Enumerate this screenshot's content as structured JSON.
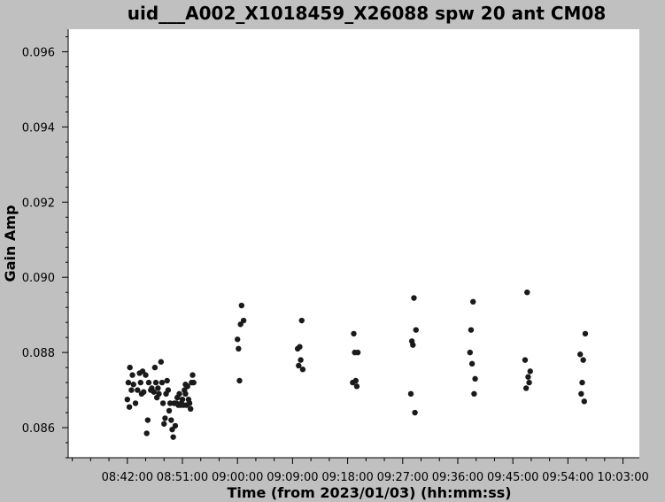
{
  "chart_data": {
    "type": "scatter",
    "title": "uid___A002_X1018459_X26088 spw 20 ant CM08",
    "xlabel": "Time (from 2023/01/03) (hh:mm:ss)",
    "ylabel": "Gain Amp",
    "x_tick_labels": [
      "08:42:00",
      "08:51:00",
      "09:00:00",
      "09:09:00",
      "09:18:00",
      "09:27:00",
      "09:36:00",
      "09:45:00",
      "09:54:00",
      "10:03:00"
    ],
    "y_tick_labels": [
      "0.086",
      "0.088",
      "0.090",
      "0.092",
      "0.094",
      "0.096"
    ],
    "y_ticks": [
      0.086,
      0.088,
      0.09,
      0.092,
      0.094,
      0.096
    ],
    "xlim": [
      "08:32:20",
      "10:05:40"
    ],
    "ylim": [
      0.0852,
      0.0966
    ],
    "grid": false,
    "point_color": "#1a1a1a",
    "series": [
      {
        "points": [
          [
            "08:42:00",
            0.08675
          ],
          [
            "08:42:10",
            0.0872
          ],
          [
            "08:42:20",
            0.08655
          ],
          [
            "08:42:25",
            0.0876
          ],
          [
            "08:42:40",
            0.087
          ],
          [
            "08:42:50",
            0.0874
          ],
          [
            "08:43:00",
            0.08715
          ],
          [
            "08:43:20",
            0.08665
          ],
          [
            "08:43:40",
            0.087
          ],
          [
            "08:44:00",
            0.08745
          ],
          [
            "08:44:10",
            0.0872
          ],
          [
            "08:44:20",
            0.0869
          ],
          [
            "08:44:30",
            0.0875
          ],
          [
            "08:44:40",
            0.08695
          ],
          [
            "08:45:00",
            0.0874
          ],
          [
            "08:45:10",
            0.08585
          ],
          [
            "08:45:20",
            0.0862
          ],
          [
            "08:45:30",
            0.0872
          ],
          [
            "08:45:50",
            0.087
          ],
          [
            "08:46:00",
            0.08705
          ],
          [
            "08:46:20",
            0.08695
          ],
          [
            "08:46:30",
            0.0876
          ],
          [
            "08:46:40",
            0.0872
          ],
          [
            "08:46:50",
            0.0868
          ],
          [
            "08:47:00",
            0.08705
          ],
          [
            "08:47:10",
            0.0869
          ],
          [
            "08:47:30",
            0.08775
          ],
          [
            "08:47:40",
            0.0872
          ],
          [
            "08:47:50",
            0.08665
          ],
          [
            "08:48:00",
            0.0861
          ],
          [
            "08:48:10",
            0.08625
          ],
          [
            "08:48:20",
            0.0869
          ],
          [
            "08:48:30",
            0.08725
          ],
          [
            "08:48:40",
            0.087
          ],
          [
            "08:48:50",
            0.08645
          ],
          [
            "08:49:00",
            0.08665
          ],
          [
            "08:49:10",
            0.0862
          ],
          [
            "08:49:20",
            0.08595
          ],
          [
            "08:49:30",
            0.08575
          ],
          [
            "08:49:40",
            0.08665
          ],
          [
            "08:49:50",
            0.08605
          ],
          [
            "08:50:00",
            0.08665
          ],
          [
            "08:50:10",
            0.0868
          ],
          [
            "08:50:20",
            0.0866
          ],
          [
            "08:50:30",
            0.0869
          ],
          [
            "08:50:40",
            0.0866
          ],
          [
            "08:50:50",
            0.08665
          ],
          [
            "08:51:00",
            0.08675
          ],
          [
            "08:51:10",
            0.0866
          ],
          [
            "08:51:20",
            0.087
          ],
          [
            "08:51:30",
            0.0869
          ],
          [
            "08:51:40",
            0.0866
          ],
          [
            "08:51:50",
            0.0871
          ],
          [
            "08:52:00",
            0.08675
          ],
          [
            "08:52:10",
            0.08665
          ],
          [
            "08:52:20",
            0.0865
          ],
          [
            "08:52:30",
            0.0872
          ],
          [
            "08:52:40",
            0.0874
          ],
          [
            "08:52:50",
            0.0872
          ],
          [
            "08:51:30",
            0.08715
          ]
        ]
      },
      {
        "points": [
          [
            "09:00:00",
            0.08835
          ],
          [
            "09:00:10",
            0.0881
          ],
          [
            "09:00:20",
            0.08725
          ],
          [
            "09:00:30",
            0.08875
          ],
          [
            "09:00:40",
            0.08925
          ],
          [
            "09:01:00",
            0.08885
          ]
        ]
      },
      {
        "points": [
          [
            "09:09:50",
            0.0881
          ],
          [
            "09:10:00",
            0.08765
          ],
          [
            "09:10:10",
            0.08815
          ],
          [
            "09:10:20",
            0.0878
          ],
          [
            "09:10:30",
            0.08885
          ],
          [
            "09:10:40",
            0.08755
          ]
        ]
      },
      {
        "points": [
          [
            "09:18:50",
            0.0872
          ],
          [
            "09:19:00",
            0.0885
          ],
          [
            "09:19:10",
            0.088
          ],
          [
            "09:19:20",
            0.08725
          ],
          [
            "09:19:30",
            0.0871
          ],
          [
            "09:19:40",
            0.088
          ]
        ]
      },
      {
        "points": [
          [
            "09:28:20",
            0.0869
          ],
          [
            "09:28:30",
            0.0883
          ],
          [
            "09:28:40",
            0.0882
          ],
          [
            "09:28:50",
            0.08945
          ],
          [
            "09:29:00",
            0.0864
          ],
          [
            "09:29:10",
            0.0886
          ]
        ]
      },
      {
        "points": [
          [
            "09:38:00",
            0.088
          ],
          [
            "09:38:10",
            0.0886
          ],
          [
            "09:38:20",
            0.0877
          ],
          [
            "09:38:30",
            0.08935
          ],
          [
            "09:38:40",
            0.0869
          ],
          [
            "09:38:50",
            0.0873
          ]
        ]
      },
      {
        "points": [
          [
            "09:47:00",
            0.0878
          ],
          [
            "09:47:10",
            0.08705
          ],
          [
            "09:47:20",
            0.0896
          ],
          [
            "09:47:30",
            0.08735
          ],
          [
            "09:47:40",
            0.0872
          ],
          [
            "09:47:50",
            0.0875
          ]
        ]
      },
      {
        "points": [
          [
            "09:56:00",
            0.08795
          ],
          [
            "09:56:10",
            0.0869
          ],
          [
            "09:56:20",
            0.0872
          ],
          [
            "09:56:30",
            0.0878
          ],
          [
            "09:56:40",
            0.0867
          ],
          [
            "09:56:50",
            0.0885
          ]
        ]
      }
    ]
  }
}
